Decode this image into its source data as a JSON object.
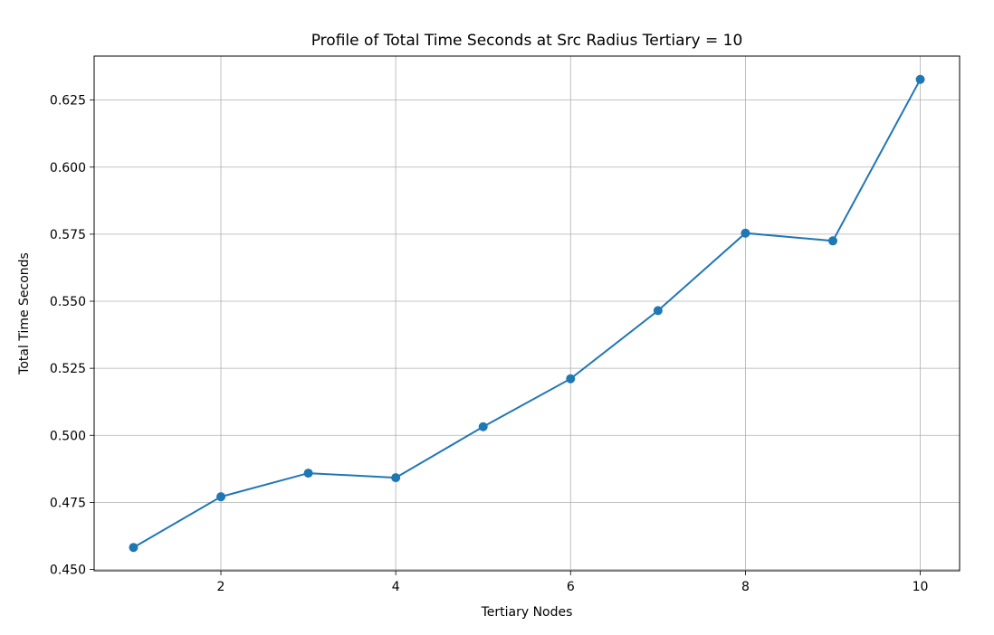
{
  "chart_data": {
    "type": "line",
    "title": "Profile of Total Time Seconds at Src Radius Tertiary = 10",
    "xlabel": "Tertiary Nodes",
    "ylabel": "Total Time Seconds",
    "x": [
      1,
      2,
      3,
      4,
      5,
      6,
      7,
      8,
      9,
      10
    ],
    "series": [
      {
        "values": [
          0.4582,
          0.4771,
          0.4859,
          0.4842,
          0.5032,
          0.5211,
          0.5465,
          0.5754,
          0.5725,
          0.6327
        ],
        "color": "#1f77b4",
        "marker": "circle"
      }
    ],
    "xlim": [
      0.55,
      10.45
    ],
    "ylim": [
      0.4495,
      0.6414
    ],
    "xticks": [
      2,
      4,
      6,
      8,
      10
    ],
    "xtick_labels": [
      "2",
      "4",
      "6",
      "8",
      "10"
    ],
    "yticks": [
      0.45,
      0.475,
      0.5,
      0.525,
      0.55,
      0.575,
      0.6,
      0.625
    ],
    "ytick_labels": [
      "0.450",
      "0.475",
      "0.500",
      "0.525",
      "0.550",
      "0.575",
      "0.600",
      "0.625"
    ],
    "grid": true,
    "legend": false
  }
}
